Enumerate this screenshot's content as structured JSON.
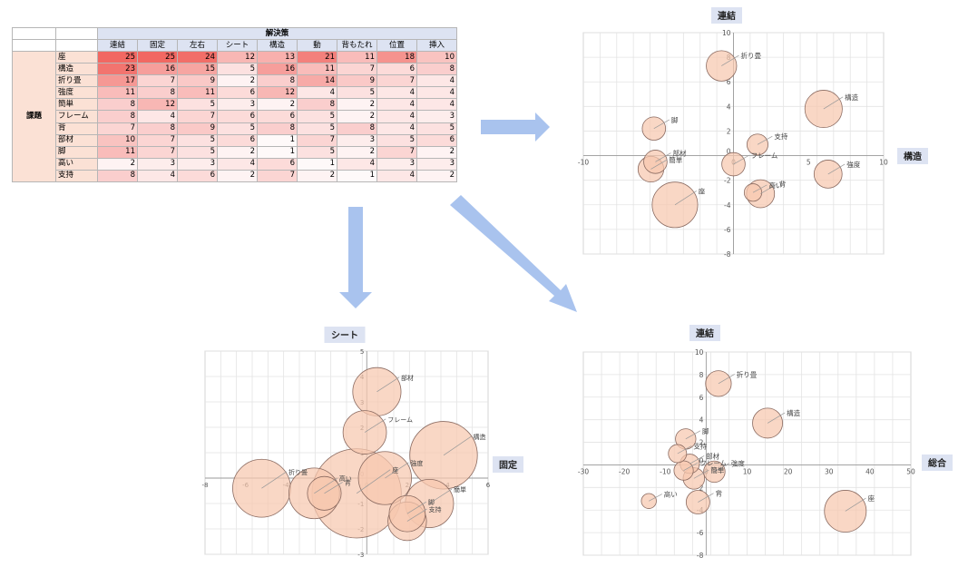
{
  "table": {
    "group_header": "解決策",
    "row_group_label": "課題",
    "columns": [
      "連結",
      "固定",
      "左右",
      "シート",
      "構造",
      "動",
      "背もたれ",
      "位置",
      "挿入"
    ],
    "rows": [
      {
        "label": "座",
        "values": [
          25,
          25,
          24,
          12,
          13,
          21,
          11,
          18,
          10
        ]
      },
      {
        "label": "構造",
        "values": [
          23,
          16,
          15,
          5,
          16,
          11,
          7,
          6,
          8
        ]
      },
      {
        "label": "折り畳",
        "values": [
          17,
          7,
          9,
          2,
          8,
          14,
          9,
          7,
          4
        ]
      },
      {
        "label": "強度",
        "values": [
          11,
          8,
          11,
          6,
          12,
          4,
          5,
          4,
          4
        ]
      },
      {
        "label": "簡単",
        "values": [
          8,
          12,
          5,
          3,
          2,
          8,
          2,
          4,
          4
        ]
      },
      {
        "label": "フレーム",
        "values": [
          8,
          4,
          7,
          6,
          6,
          5,
          2,
          4,
          3
        ]
      },
      {
        "label": "背",
        "values": [
          7,
          8,
          9,
          5,
          8,
          5,
          8,
          4,
          5
        ]
      },
      {
        "label": "部材",
        "values": [
          10,
          7,
          5,
          6,
          1,
          7,
          3,
          5,
          6
        ]
      },
      {
        "label": "脚",
        "values": [
          11,
          7,
          5,
          2,
          1,
          5,
          2,
          7,
          2
        ]
      },
      {
        "label": "高い",
        "values": [
          2,
          3,
          3,
          4,
          6,
          1,
          4,
          3,
          3
        ]
      },
      {
        "label": "支持",
        "values": [
          8,
          4,
          6,
          2,
          7,
          2,
          1,
          4,
          2
        ]
      }
    ],
    "heat_color": "#f0605a"
  },
  "chart_data": [
    {
      "type": "bubble",
      "title": "連結",
      "ylabel_side": "構造",
      "xlim": [
        -10,
        10
      ],
      "ylim": [
        -8,
        10
      ],
      "xticks": [
        -10,
        -5,
        0,
        5,
        10
      ],
      "yticks": [
        -8,
        -6,
        -4,
        -2,
        0,
        2,
        4,
        6,
        8,
        10
      ],
      "points": [
        {
          "label": "折り畳",
          "x": -0.8,
          "y": 7.3,
          "size": 1.3
        },
        {
          "label": "構造",
          "x": 6,
          "y": 3.8,
          "size": 1.6
        },
        {
          "label": "脚",
          "x": -5.3,
          "y": 2.2,
          "size": 1.0
        },
        {
          "label": "支持",
          "x": 1.6,
          "y": 0.9,
          "size": 0.9
        },
        {
          "label": "部材",
          "x": -5.2,
          "y": -0.5,
          "size": 1.0
        },
        {
          "label": "簡単",
          "x": -5.5,
          "y": -1.1,
          "size": 1.1
        },
        {
          "label": "フレーム",
          "x": 0,
          "y": -0.7,
          "size": 1.0
        },
        {
          "label": "強度",
          "x": 6.3,
          "y": -1.5,
          "size": 1.2
        },
        {
          "label": "座",
          "x": -3.9,
          "y": -4.0,
          "size": 1.95
        },
        {
          "label": "背",
          "x": 1.8,
          "y": -3.1,
          "size": 1.2
        },
        {
          "label": "高い",
          "x": 1.3,
          "y": -3.0,
          "size": 0.75
        }
      ]
    },
    {
      "type": "bubble",
      "title": "シート",
      "ylabel_side": "固定",
      "xlim": [
        -8,
        6
      ],
      "ylim": [
        -3,
        5
      ],
      "xticks": [
        -8,
        -6,
        -4,
        -2,
        0,
        2,
        4,
        6
      ],
      "yticks": [
        -3,
        -2,
        -1,
        0,
        1,
        2,
        3,
        4,
        5
      ],
      "points": [
        {
          "label": "部材",
          "x": 0.5,
          "y": 3.4,
          "size": 1.0
        },
        {
          "label": "フレーム",
          "x": -0.1,
          "y": 1.8,
          "size": 0.9
        },
        {
          "label": "構造",
          "x": 3.8,
          "y": 0.9,
          "size": 1.4
        },
        {
          "label": "折り畳",
          "x": -5.2,
          "y": -0.4,
          "size": 1.2
        },
        {
          "label": "強度",
          "x": 0.9,
          "y": 0.0,
          "size": 1.1
        },
        {
          "label": "座",
          "x": -0.5,
          "y": -0.6,
          "size": 1.85
        },
        {
          "label": "高い",
          "x": -2.6,
          "y": -0.6,
          "size": 1.05
        },
        {
          "label": "背",
          "x": -2.1,
          "y": -0.6,
          "size": 0.7
        },
        {
          "label": "簡単",
          "x": 3.1,
          "y": -1.0,
          "size": 1.0
        },
        {
          "label": "脚",
          "x": 2.0,
          "y": -1.4,
          "size": 0.75
        },
        {
          "label": "支持",
          "x": 2.0,
          "y": -1.7,
          "size": 0.8
        }
      ]
    },
    {
      "type": "bubble",
      "title": "連結",
      "ylabel_side": "総合",
      "xlim": [
        -30,
        50
      ],
      "ylim": [
        -8,
        10
      ],
      "xticks": [
        -30,
        -20,
        -10,
        0,
        10,
        20,
        30,
        40,
        50
      ],
      "yticks": [
        -8,
        -6,
        -4,
        -2,
        0,
        2,
        4,
        6,
        8,
        10
      ],
      "points": [
        {
          "label": "折り畳",
          "x": 3,
          "y": 7.2,
          "size": 1.2
        },
        {
          "label": "構造",
          "x": 15,
          "y": 3.7,
          "size": 1.4
        },
        {
          "label": "脚",
          "x": -5,
          "y": 2.3,
          "size": 0.95
        },
        {
          "label": "支持",
          "x": -7,
          "y": 1.0,
          "size": 0.85
        },
        {
          "label": "部材",
          "x": -4,
          "y": 0.1,
          "size": 0.9
        },
        {
          "label": "フレーム",
          "x": -5.5,
          "y": -0.5,
          "size": 0.9
        },
        {
          "label": "強度",
          "x": 2,
          "y": -0.6,
          "size": 1.0
        },
        {
          "label": "簡単",
          "x": -3,
          "y": -1.2,
          "size": 1.0
        },
        {
          "label": "高い",
          "x": -14,
          "y": -3.2,
          "size": 0.7
        },
        {
          "label": "背",
          "x": -2,
          "y": -3.3,
          "size": 1.1
        },
        {
          "label": "座",
          "x": 34,
          "y": -4.1,
          "size": 1.95
        }
      ]
    }
  ],
  "colors": {
    "bubble_fill": "#f6c8ae",
    "bubble_stroke": "#8a6a60",
    "arrow": "#a9c3ee",
    "title_bg": "#dde3f2",
    "grid": "#d4d4d4"
  }
}
